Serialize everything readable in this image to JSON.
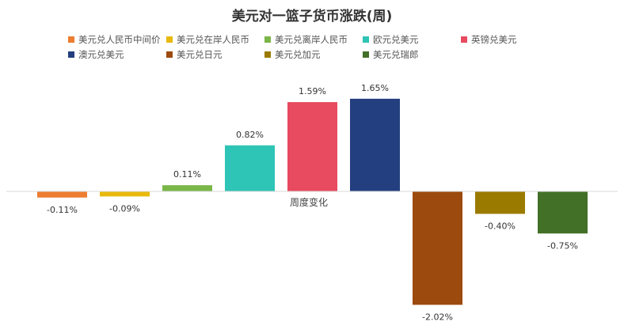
{
  "chart_data": {
    "type": "bar",
    "title": "美元对一篮子货币涨跌(周)",
    "xlabel": "周度变化",
    "ylabel": "",
    "ylim": [
      -2.1,
      1.8
    ],
    "grid": false,
    "legend_position": "top",
    "series": [
      {
        "name": "美元兑人民币中间价",
        "value": -0.11,
        "label": "-0.11%",
        "color": "#ED7D31"
      },
      {
        "name": "美元兑在岸人民币",
        "value": -0.09,
        "label": "-0.09%",
        "color": "#E8B90C"
      },
      {
        "name": "美元兑离岸人民币",
        "value": 0.11,
        "label": "0.11%",
        "color": "#7AB648"
      },
      {
        "name": "欧元兑美元",
        "value": 0.82,
        "label": "0.82%",
        "color": "#2EC4B6"
      },
      {
        "name": "英镑兑美元",
        "value": 1.59,
        "label": "1.59%",
        "color": "#E84A5F"
      },
      {
        "name": "澳元兑美元",
        "value": 1.65,
        "label": "1.65%",
        "color": "#243F7F"
      },
      {
        "name": "美元兑日元",
        "value": -2.02,
        "label": "-2.02%",
        "color": "#9C4A0D"
      },
      {
        "name": "美元兑加元",
        "value": -0.4,
        "label": "-0.40%",
        "color": "#9B7A00"
      },
      {
        "name": "美元兑瑞郎",
        "value": -0.75,
        "label": "-0.75%",
        "color": "#437027"
      }
    ]
  }
}
